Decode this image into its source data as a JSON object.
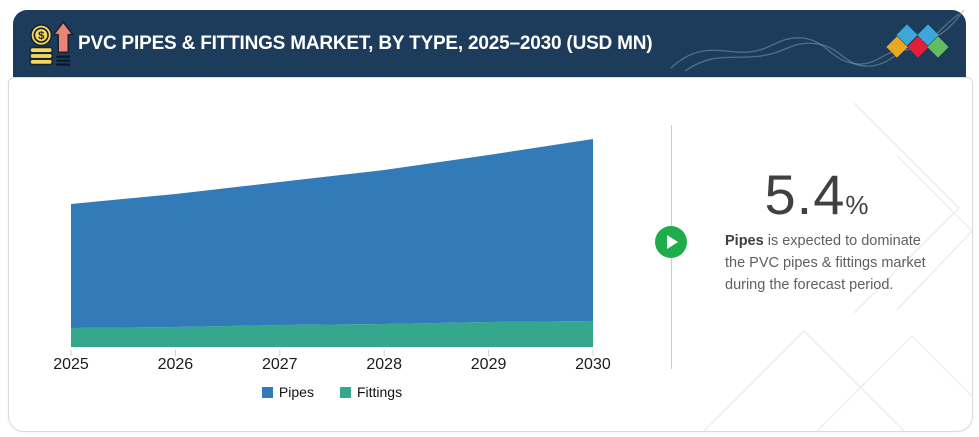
{
  "header": {
    "title": "PVC PIPES & FITTINGS MARKET, BY TYPE, 2025–2030 (USD MN)",
    "icon": "money-growth-icon",
    "background_color": "#1d3c5c",
    "title_color": "#ffffff",
    "logo_diamond_colors": [
      "#eaa822",
      "#3fa6d8",
      "#e41e38",
      "#3fa6d8",
      "#63bd5f"
    ]
  },
  "chart_data": {
    "type": "area",
    "stacked": true,
    "title": "PVC PIPES & FITTINGS MARKET, BY TYPE, 2025–2030 (USD MN)",
    "categories": [
      "2025",
      "2026",
      "2027",
      "2028",
      "2029",
      "2030"
    ],
    "series": [
      {
        "name": "Pipes",
        "color": "#337ab8",
        "values": [
          124,
          133,
          143,
          154,
          167,
          182
        ]
      },
      {
        "name": "Fittings",
        "color": "#35a78c",
        "values": [
          19,
          20,
          22,
          23,
          25,
          26
        ]
      }
    ],
    "xlabel": "",
    "ylabel": "",
    "ylim": [
      0,
      230
    ],
    "value_axis_visible": false,
    "units": "USD MN (no numeric axis shown; values are relative estimates)",
    "legend_position": "bottom"
  },
  "insight": {
    "stat_value": "5.4",
    "stat_unit": "%",
    "text_lead": "Pipes",
    "text_rest": " is expected to dominate the PVC pipes & fittings market during the forecast period.",
    "play_icon_color": "#1fad4b"
  }
}
